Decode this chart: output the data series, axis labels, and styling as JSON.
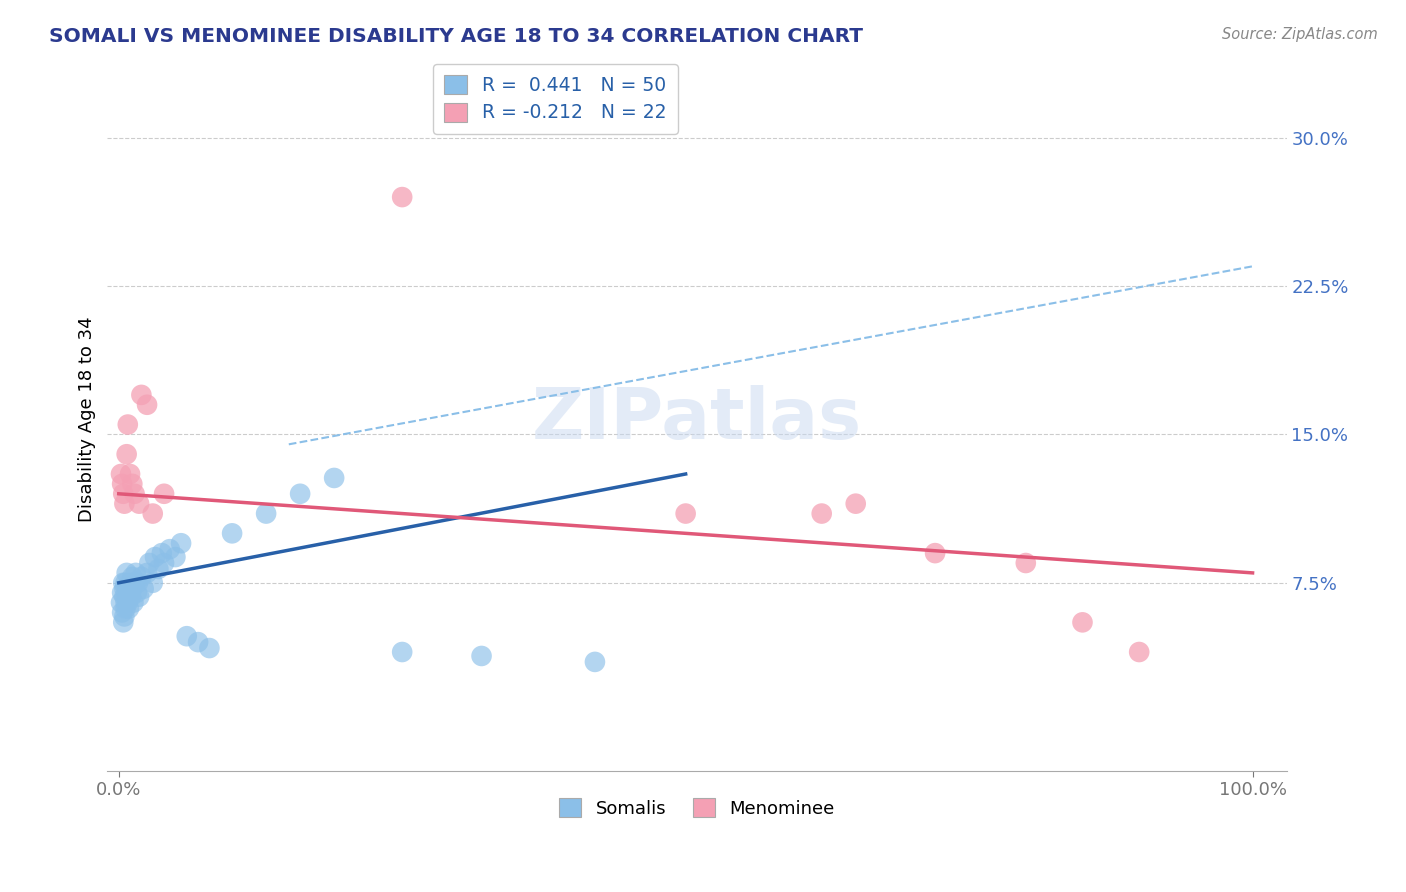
{
  "title": "SOMALI VS MENOMINEE DISABILITY AGE 18 TO 34 CORRELATION CHART",
  "source_text": "Source: ZipAtlas.com",
  "ylabel": "Disability Age 18 to 34",
  "y_tick_vals": [
    0.075,
    0.15,
    0.225,
    0.3
  ],
  "y_tick_labels": [
    "7.5%",
    "15.0%",
    "22.5%",
    "30.0%"
  ],
  "x_tick_vals": [
    0.0,
    1.0
  ],
  "x_tick_labels": [
    "0.0%",
    "100.0%"
  ],
  "legend_line1": "R =  0.441   N = 50",
  "legend_line2": "R = -0.212   N = 22",
  "somali_color": "#8BBFE8",
  "menominee_color": "#F4A0B4",
  "somali_line_color": "#2860A8",
  "menominee_line_color": "#E05878",
  "dashed_line_color": "#8BBFE8",
  "title_color": "#2B3A8F",
  "ytick_color": "#4472C4",
  "background_color": "#FFFFFF",
  "somali_x": [
    0.002,
    0.003,
    0.003,
    0.004,
    0.004,
    0.005,
    0.005,
    0.005,
    0.006,
    0.006,
    0.006,
    0.007,
    0.007,
    0.008,
    0.008,
    0.009,
    0.009,
    0.01,
    0.01,
    0.011,
    0.012,
    0.012,
    0.013,
    0.014,
    0.015,
    0.016,
    0.017,
    0.018,
    0.02,
    0.022,
    0.025,
    0.027,
    0.03,
    0.032,
    0.035,
    0.038,
    0.04,
    0.045,
    0.05,
    0.055,
    0.06,
    0.07,
    0.08,
    0.1,
    0.13,
    0.16,
    0.19,
    0.25,
    0.32,
    0.42
  ],
  "somali_y": [
    0.065,
    0.07,
    0.06,
    0.075,
    0.055,
    0.068,
    0.072,
    0.058,
    0.065,
    0.075,
    0.062,
    0.07,
    0.08,
    0.065,
    0.072,
    0.068,
    0.062,
    0.075,
    0.07,
    0.068,
    0.072,
    0.078,
    0.065,
    0.075,
    0.08,
    0.07,
    0.075,
    0.068,
    0.078,
    0.072,
    0.08,
    0.085,
    0.075,
    0.088,
    0.082,
    0.09,
    0.085,
    0.092,
    0.088,
    0.095,
    0.048,
    0.045,
    0.042,
    0.1,
    0.11,
    0.12,
    0.128,
    0.04,
    0.038,
    0.035
  ],
  "menominee_x": [
    0.002,
    0.003,
    0.004,
    0.005,
    0.007,
    0.008,
    0.01,
    0.012,
    0.014,
    0.018,
    0.02,
    0.025,
    0.03,
    0.04,
    0.25,
    0.5,
    0.62,
    0.65,
    0.72,
    0.8,
    0.85,
    0.9
  ],
  "menominee_y": [
    0.13,
    0.125,
    0.12,
    0.115,
    0.14,
    0.155,
    0.13,
    0.125,
    0.12,
    0.115,
    0.17,
    0.165,
    0.11,
    0.12,
    0.27,
    0.11,
    0.11,
    0.115,
    0.09,
    0.085,
    0.055,
    0.04
  ],
  "xlim": [
    -0.01,
    1.03
  ],
  "ylim": [
    -0.02,
    0.335
  ],
  "somali_trend_x0": 0.0,
  "somali_trend_y0": 0.075,
  "somali_trend_x1": 0.5,
  "somali_trend_y1": 0.13,
  "dashed_trend_x0": 0.15,
  "dashed_trend_y0": 0.145,
  "dashed_trend_x1": 1.0,
  "dashed_trend_y1": 0.235,
  "menominee_trend_x0": 0.0,
  "menominee_trend_y0": 0.12,
  "menominee_trend_x1": 1.0,
  "menominee_trend_y1": 0.08
}
